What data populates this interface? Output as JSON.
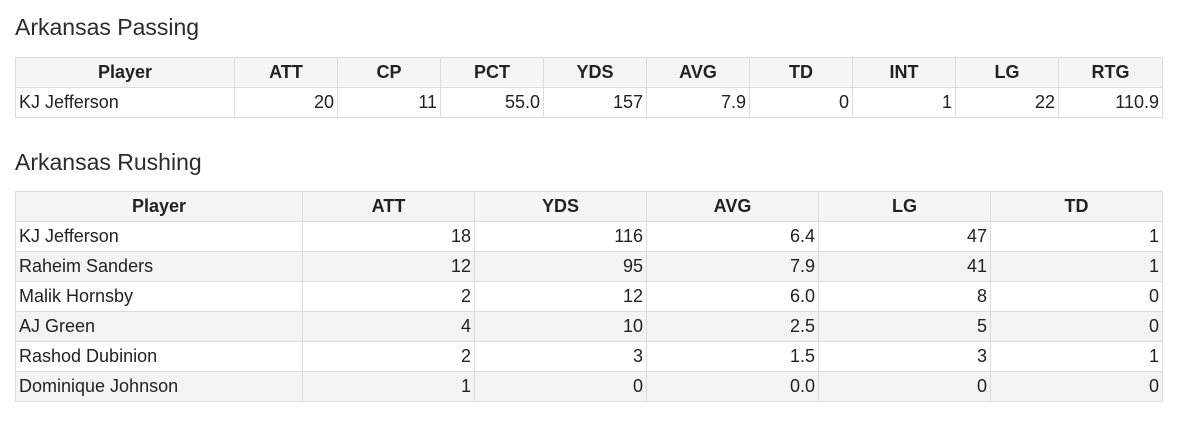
{
  "passing": {
    "title": "Arkansas Passing",
    "headers": [
      "Player",
      "ATT",
      "CP",
      "PCT",
      "YDS",
      "AVG",
      "TD",
      "INT",
      "LG",
      "RTG"
    ],
    "rows": [
      [
        "KJ Jefferson",
        "20",
        "11",
        "55.0",
        "157",
        "7.9",
        "0",
        "1",
        "22",
        "110.9"
      ]
    ]
  },
  "rushing": {
    "title": "Arkansas Rushing",
    "headers": [
      "Player",
      "ATT",
      "YDS",
      "AVG",
      "LG",
      "TD"
    ],
    "rows": [
      [
        "KJ Jefferson",
        "18",
        "116",
        "6.4",
        "47",
        "1"
      ],
      [
        "Raheim Sanders",
        "12",
        "95",
        "7.9",
        "41",
        "1"
      ],
      [
        "Malik Hornsby",
        "2",
        "12",
        "6.0",
        "8",
        "0"
      ],
      [
        "AJ Green",
        "4",
        "10",
        "2.5",
        "5",
        "0"
      ],
      [
        "Rashod Dubinion",
        "2",
        "3",
        "1.5",
        "3",
        "1"
      ],
      [
        "Dominique Johnson",
        "1",
        "0",
        "0.0",
        "0",
        "0"
      ]
    ]
  }
}
